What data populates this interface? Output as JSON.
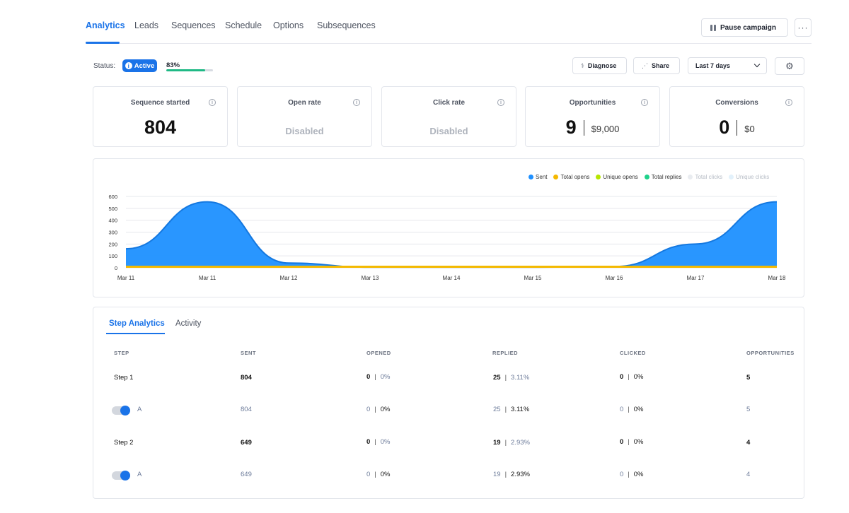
{
  "nav": {
    "tabs": [
      "Analytics",
      "Leads",
      "Sequences",
      "Schedule",
      "Options",
      "Subsequences"
    ],
    "pause_label": "Pause campaign",
    "more_label": "···"
  },
  "status": {
    "label": "Status:",
    "badge": "Active",
    "badge_icon": "i",
    "progress_text": "83%",
    "progress_percent": 83
  },
  "actions": {
    "diagnose": "Diagnose",
    "share": "Share",
    "date_range": "Last 7 days"
  },
  "stats": {
    "sequence_started": {
      "title": "Sequence started",
      "value": "804"
    },
    "open_rate": {
      "title": "Open rate",
      "value": "Disabled"
    },
    "click_rate": {
      "title": "Click rate",
      "value": "Disabled"
    },
    "opportunities": {
      "title": "Opportunities",
      "value": "9",
      "amount": "$9,000"
    },
    "conversions": {
      "title": "Conversions",
      "value": "0",
      "amount": "$0"
    }
  },
  "colors": {
    "accent": "#1a73e8",
    "sent": "#1e90ff",
    "total_opens": "#f5b800",
    "unique_opens": "#b6e600",
    "total_replies": "#1fd18a",
    "total_clicks": "#e9ecf0",
    "unique_clicks": "#e2f1fb",
    "progress": "#1fb985"
  },
  "legend": [
    "Sent",
    "Total opens",
    "Unique opens",
    "Total replies",
    "Total clicks",
    "Unique clicks"
  ],
  "chart_data": {
    "type": "area",
    "x": [
      "Mar 11",
      "Mar 11",
      "Mar 12",
      "Mar 13",
      "Mar 14",
      "Mar 15",
      "Mar 16",
      "Mar 17",
      "Mar 18"
    ],
    "ylim": [
      0,
      600
    ],
    "yticks": [
      "600",
      "500",
      "400",
      "300",
      "200",
      "100",
      "0"
    ],
    "grid": true,
    "legend_position": "top-right",
    "series": [
      {
        "name": "Sent",
        "values": [
          160,
          555,
          40,
          5,
          5,
          5,
          10,
          200,
          555
        ]
      },
      {
        "name": "Total opens",
        "values": [
          0,
          0,
          0,
          0,
          0,
          0,
          0,
          0,
          0
        ]
      },
      {
        "name": "Unique opens",
        "values": [
          0,
          0,
          0,
          0,
          0,
          0,
          0,
          0,
          0
        ]
      },
      {
        "name": "Total replies",
        "values": [
          2,
          4,
          2,
          0,
          0,
          0,
          1,
          3,
          5
        ]
      },
      {
        "name": "Total clicks",
        "values": [
          0,
          0,
          0,
          0,
          0,
          0,
          0,
          0,
          0
        ]
      },
      {
        "name": "Unique clicks",
        "values": [
          0,
          0,
          0,
          0,
          0,
          0,
          0,
          0,
          0
        ]
      }
    ]
  },
  "step_tabs": [
    "Step Analytics",
    "Activity"
  ],
  "table": {
    "headers": [
      "STEP",
      "SENT",
      "OPENED",
      "REPLIED",
      "CLICKED",
      "OPPORTUNITIES"
    ],
    "sep": "|",
    "rows": [
      {
        "step": "Step 1",
        "sent": "804",
        "opened": "0",
        "opened_pct": "0%",
        "replied": "25",
        "replied_pct": "3.11%",
        "clicked": "0",
        "clicked_pct": "0%",
        "opps": "5"
      },
      {
        "step": "A",
        "sent": "804",
        "opened": "0",
        "opened_pct": "0%",
        "replied": "25",
        "replied_pct": "3.11%",
        "clicked": "0",
        "clicked_pct": "0%",
        "opps": "5"
      },
      {
        "step": "Step 2",
        "sent": "649",
        "opened": "0",
        "opened_pct": "0%",
        "replied": "19",
        "replied_pct": "2.93%",
        "clicked": "0",
        "clicked_pct": "0%",
        "opps": "4"
      },
      {
        "step": "A",
        "sent": "649",
        "opened": "0",
        "opened_pct": "0%",
        "replied": "19",
        "replied_pct": "2.93%",
        "clicked": "0",
        "clicked_pct": "0%",
        "opps": "4"
      }
    ]
  }
}
